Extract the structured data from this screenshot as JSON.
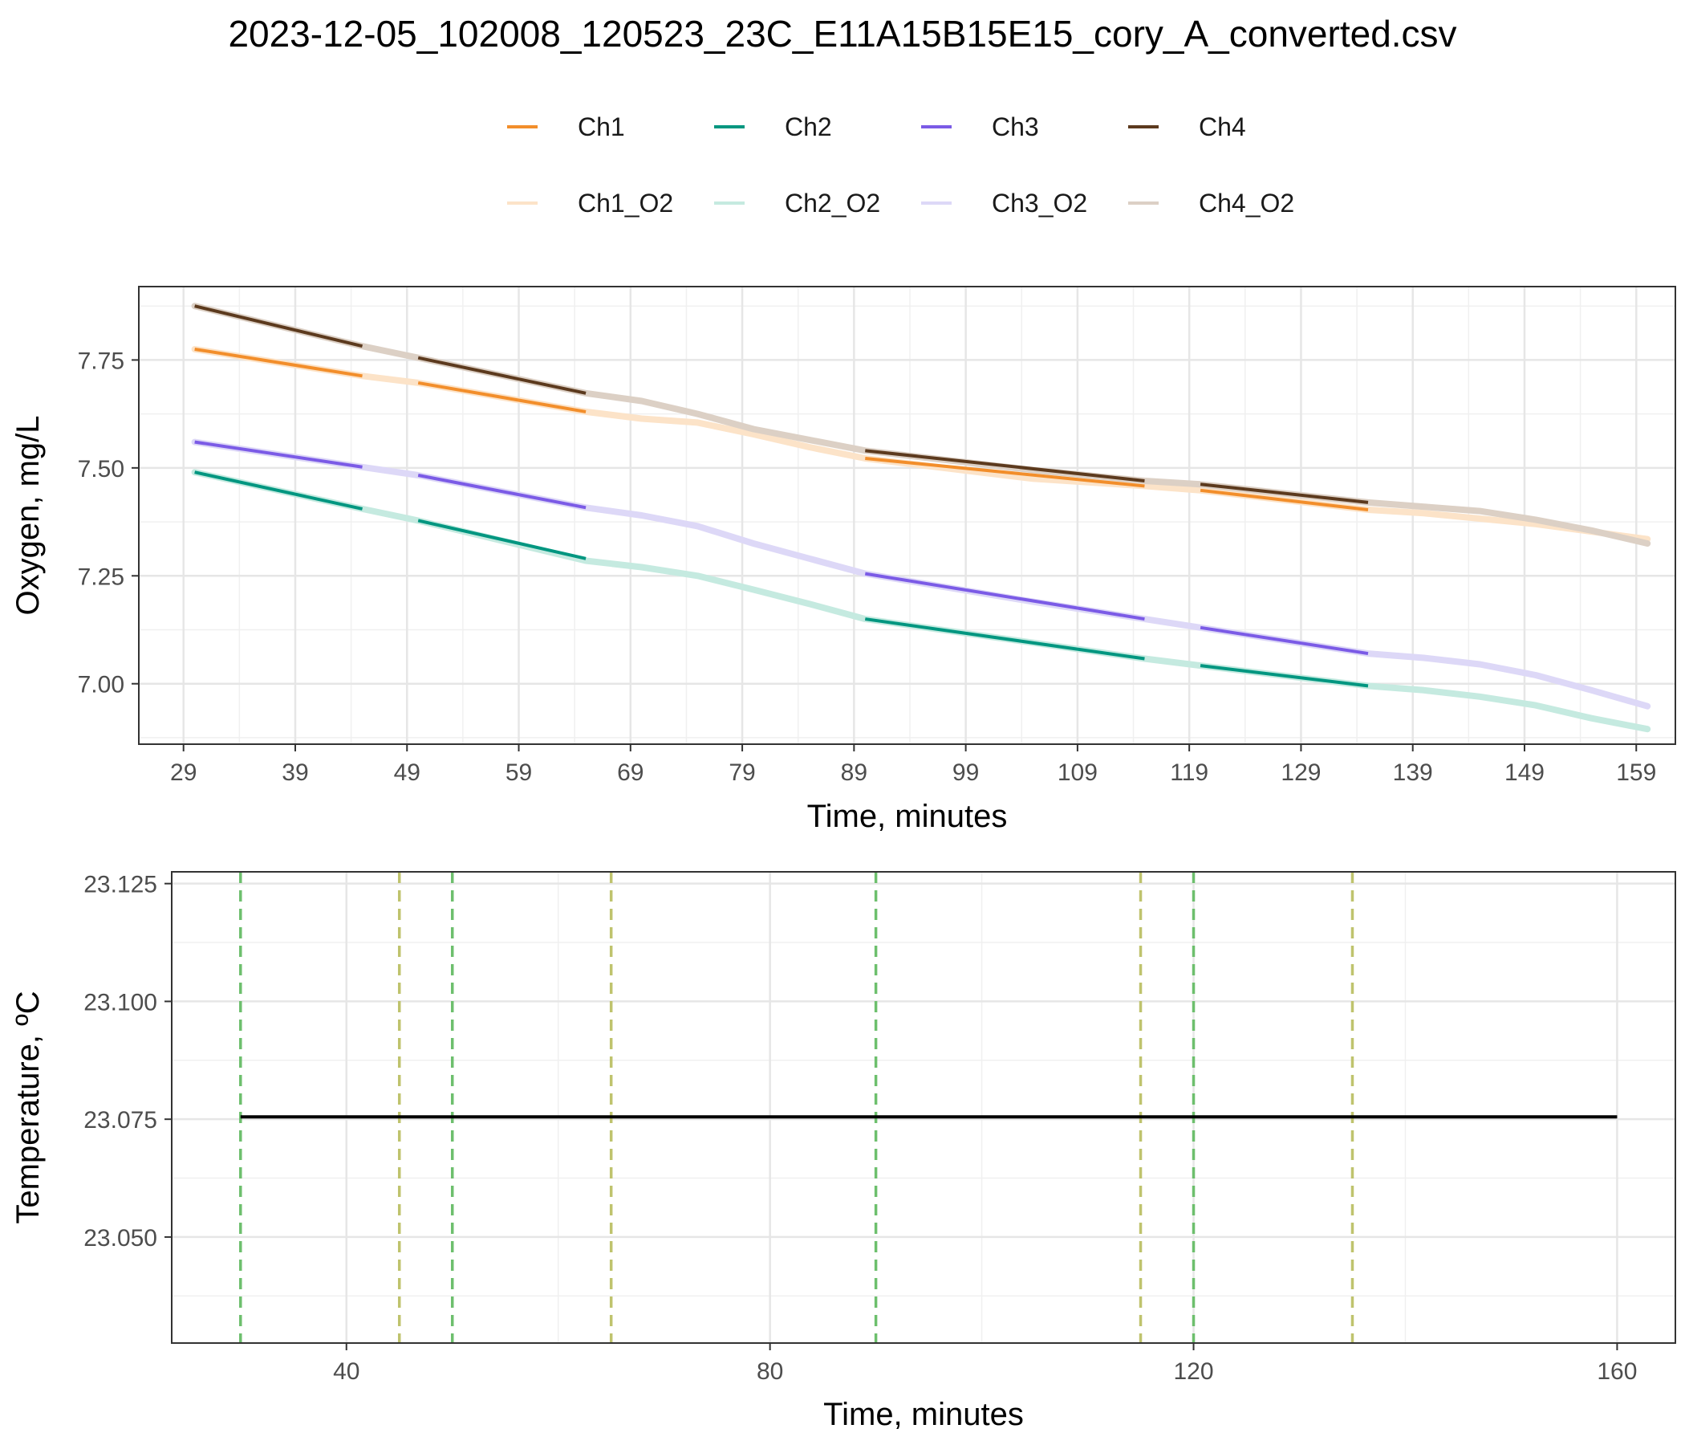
{
  "title": "2023-12-05_102008_120523_23C_E11A15B15E15_cory_A_converted.csv",
  "legend": {
    "placement": "top",
    "entries": [
      {
        "label": "Ch1",
        "color": "#F28E2B"
      },
      {
        "label": "Ch2",
        "color": "#009680"
      },
      {
        "label": "Ch3",
        "color": "#7B5BE6"
      },
      {
        "label": "Ch4",
        "color": "#5C3A1E"
      },
      {
        "label": "Ch1_O2",
        "color": "#FCE3C8"
      },
      {
        "label": "Ch2_O2",
        "color": "#C5EAE0"
      },
      {
        "label": "Ch3_O2",
        "color": "#DDD8F7"
      },
      {
        "label": "Ch4_O2",
        "color": "#DCD0C5"
      }
    ]
  },
  "chart_data": [
    {
      "type": "line",
      "xlabel": "Time, minutes",
      "ylabel": "Oxygen, mg/L",
      "xlim": [
        25,
        162.5
      ],
      "ylim": [
        6.86,
        7.92
      ],
      "x_ticks": [
        29,
        39,
        49,
        59,
        69,
        79,
        89,
        99,
        109,
        119,
        129,
        139,
        149,
        159
      ],
      "x_tick_labels": [
        "29",
        "39",
        "49",
        "59",
        "69",
        "79",
        "89",
        "99",
        "109",
        "119",
        "129",
        "139",
        "149",
        "159"
      ],
      "y_ticks": [
        7.0,
        7.25,
        7.5,
        7.75
      ],
      "y_tick_labels": [
        "7.00",
        "7.25",
        "7.50",
        "7.75"
      ],
      "grid": true,
      "raw_series": [
        {
          "name": "Ch1_O2",
          "color": "#FCE3C8",
          "x": [
            30,
            45,
            50,
            65,
            70,
            75,
            80,
            85,
            90,
            105,
            115,
            120,
            135,
            140,
            150,
            160
          ],
          "y": [
            7.775,
            7.713,
            7.697,
            7.63,
            7.614,
            7.605,
            7.578,
            7.548,
            7.522,
            7.475,
            7.458,
            7.448,
            7.403,
            7.395,
            7.37,
            7.335
          ]
        },
        {
          "name": "Ch2_O2",
          "color": "#C5EAE0",
          "x": [
            30,
            45,
            50,
            65,
            70,
            75,
            80,
            85,
            90,
            105,
            115,
            120,
            135,
            140,
            145,
            150,
            155,
            160
          ],
          "y": [
            7.49,
            7.405,
            7.378,
            7.285,
            7.27,
            7.25,
            7.218,
            7.185,
            7.15,
            7.095,
            7.058,
            7.042,
            6.995,
            6.985,
            6.97,
            6.95,
            6.92,
            6.895
          ]
        },
        {
          "name": "Ch3_O2",
          "color": "#DDD8F7",
          "x": [
            30,
            45,
            50,
            65,
            70,
            75,
            80,
            85,
            90,
            105,
            115,
            120,
            135,
            140,
            145,
            150,
            155,
            160
          ],
          "y": [
            7.56,
            7.502,
            7.483,
            7.408,
            7.39,
            7.365,
            7.325,
            7.29,
            7.255,
            7.19,
            7.15,
            7.13,
            7.07,
            7.06,
            7.045,
            7.02,
            6.985,
            6.948
          ]
        },
        {
          "name": "Ch4_O2",
          "color": "#DCD0C5",
          "x": [
            30,
            45,
            50,
            65,
            70,
            75,
            80,
            85,
            90,
            105,
            115,
            120,
            135,
            140,
            145,
            150,
            155,
            160
          ],
          "y": [
            7.875,
            7.782,
            7.755,
            7.673,
            7.655,
            7.625,
            7.59,
            7.565,
            7.54,
            7.495,
            7.47,
            7.462,
            7.42,
            7.41,
            7.4,
            7.38,
            7.355,
            7.325
          ]
        }
      ],
      "fit_series": [
        {
          "name": "Ch1",
          "color": "#F28E2B",
          "segments": [
            {
              "x": [
                30,
                45
              ],
              "y": [
                7.775,
                7.713
              ]
            },
            {
              "x": [
                50,
                65
              ],
              "y": [
                7.697,
                7.63
              ]
            },
            {
              "x": [
                90,
                115
              ],
              "y": [
                7.522,
                7.458
              ]
            },
            {
              "x": [
                120,
                135
              ],
              "y": [
                7.448,
                7.403
              ]
            }
          ]
        },
        {
          "name": "Ch2",
          "color": "#009680",
          "segments": [
            {
              "x": [
                30,
                45
              ],
              "y": [
                7.49,
                7.405
              ]
            },
            {
              "x": [
                50,
                65
              ],
              "y": [
                7.378,
                7.29
              ]
            },
            {
              "x": [
                90,
                115
              ],
              "y": [
                7.15,
                7.058
              ]
            },
            {
              "x": [
                120,
                135
              ],
              "y": [
                7.042,
                6.995
              ]
            }
          ]
        },
        {
          "name": "Ch3",
          "color": "#7B5BE6",
          "segments": [
            {
              "x": [
                30,
                45
              ],
              "y": [
                7.56,
                7.502
              ]
            },
            {
              "x": [
                50,
                65
              ],
              "y": [
                7.483,
                7.408
              ]
            },
            {
              "x": [
                90,
                115
              ],
              "y": [
                7.255,
                7.15
              ]
            },
            {
              "x": [
                120,
                135
              ],
              "y": [
                7.13,
                7.07
              ]
            }
          ]
        },
        {
          "name": "Ch4",
          "color": "#5C3A1E",
          "segments": [
            {
              "x": [
                30,
                45
              ],
              "y": [
                7.875,
                7.782
              ]
            },
            {
              "x": [
                50,
                65
              ],
              "y": [
                7.755,
                7.673
              ]
            },
            {
              "x": [
                90,
                115
              ],
              "y": [
                7.54,
                7.47
              ]
            },
            {
              "x": [
                120,
                135
              ],
              "y": [
                7.462,
                7.42
              ]
            }
          ]
        }
      ]
    },
    {
      "type": "line",
      "xlabel": "Time, minutes",
      "ylabel": "Temperature, ºC",
      "xlim": [
        23.5,
        165.5
      ],
      "ylim": [
        23.0275,
        23.1275
      ],
      "x_ticks": [
        40,
        80,
        120,
        160
      ],
      "x_tick_labels": [
        "40",
        "80",
        "120",
        "160"
      ],
      "y_ticks": [
        23.05,
        23.075,
        23.1,
        23.125
      ],
      "y_tick_labels": [
        "23.050",
        "23.075",
        "23.100",
        "23.125"
      ],
      "grid": true,
      "series": [
        {
          "color": "#000000",
          "x": [
            30,
            160
          ],
          "y": [
            23.0755,
            23.0755
          ]
        }
      ],
      "vlines": [
        {
          "x": 30,
          "color": "#6DBF6D"
        },
        {
          "x": 45,
          "color": "#BFC36D"
        },
        {
          "x": 50,
          "color": "#6DBF6D"
        },
        {
          "x": 65,
          "color": "#BFC36D"
        },
        {
          "x": 90,
          "color": "#6DBF6D"
        },
        {
          "x": 115,
          "color": "#BFC36D"
        },
        {
          "x": 120,
          "color": "#6DBF6D"
        },
        {
          "x": 135,
          "color": "#BFC36D"
        }
      ]
    }
  ]
}
